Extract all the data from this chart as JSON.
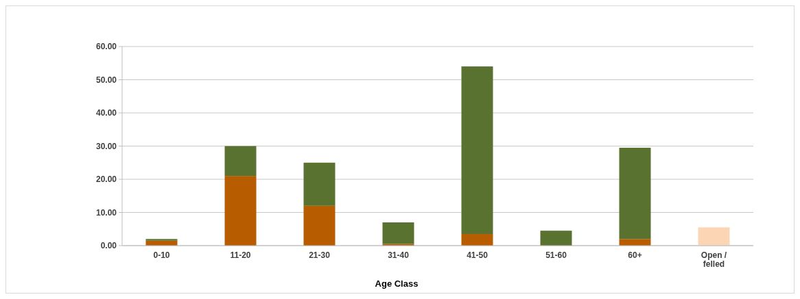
{
  "chart_data": {
    "type": "bar",
    "stacked": true,
    "xlabel": "Age Class",
    "categories": [
      "0-10",
      "11-20",
      "21-30",
      "31-40",
      "41-50",
      "51-60",
      "60+",
      "Open / felled"
    ],
    "series": [
      {
        "color": "#b85c00",
        "values": [
          1.5,
          21,
          12,
          0.5,
          3.5,
          null,
          2,
          null
        ]
      },
      {
        "color": "#5a7230",
        "values": [
          0.5,
          9,
          13,
          6.5,
          50.5,
          4.5,
          27.5,
          null
        ]
      },
      {
        "color": "#fcd5b4",
        "values": [
          null,
          null,
          null,
          null,
          null,
          null,
          null,
          5.5
        ]
      }
    ],
    "ylim": [
      0,
      60
    ],
    "yticks": [
      {
        "value": 0,
        "label": "0.00"
      },
      {
        "value": 10,
        "label": "10.00"
      },
      {
        "value": 20,
        "label": "20.00"
      },
      {
        "value": 30,
        "label": "30.00"
      },
      {
        "value": 40,
        "label": "40.00"
      },
      {
        "value": 50,
        "label": "50.00"
      },
      {
        "value": 60,
        "label": "60.00"
      }
    ],
    "grid": true
  }
}
